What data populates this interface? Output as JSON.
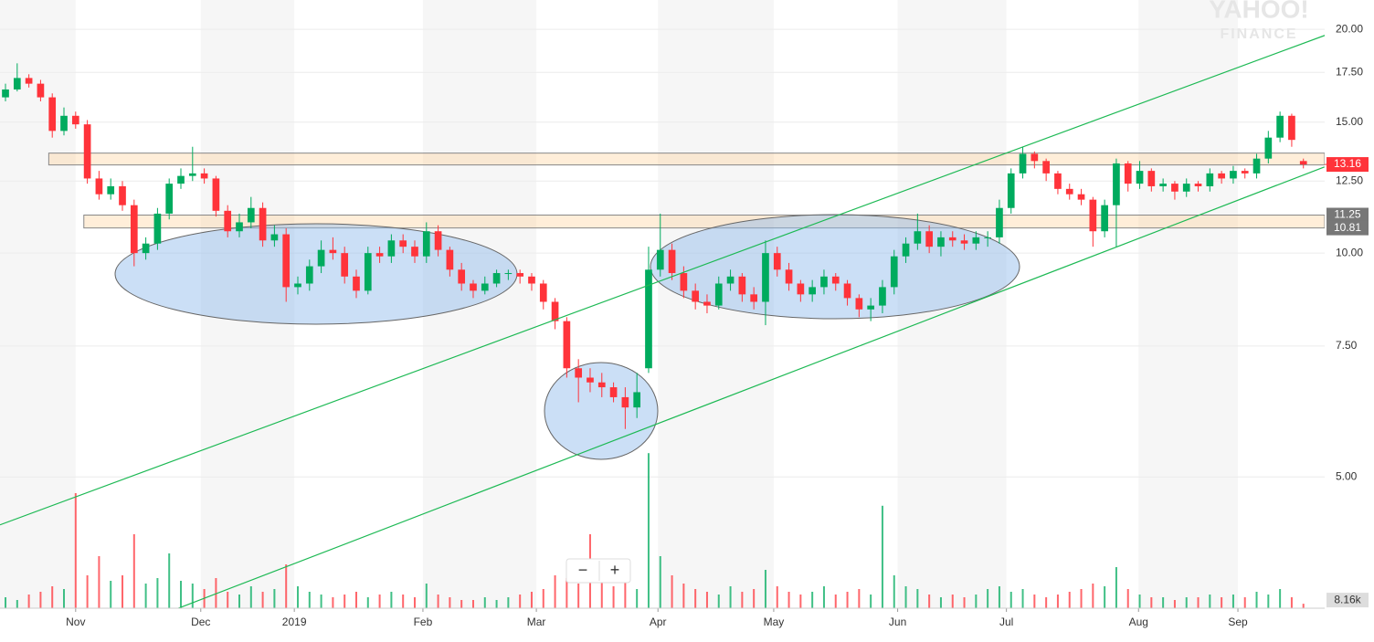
{
  "chart_data": {
    "type": "candlestick",
    "watermark": [
      "YAHOO!",
      "FINANCE"
    ],
    "zoom_controls": [
      "−",
      "+"
    ],
    "log_scale": true,
    "ylim": [
      3.2,
      21.9
    ],
    "yticks": [
      {
        "value": 5,
        "label": "5.00"
      },
      {
        "value": 7.5,
        "label": "7.50"
      },
      {
        "value": 10,
        "label": "10.00"
      },
      {
        "value": 12.5,
        "label": "12.50"
      },
      {
        "value": 15,
        "label": "15.00"
      },
      {
        "value": 17.5,
        "label": "17.50"
      },
      {
        "value": 20,
        "label": "20.00"
      }
    ],
    "xlim": [
      -0.47,
      113.6
    ],
    "xticks": [
      {
        "value": 6.0,
        "label": "Nov"
      },
      {
        "value": 16.7,
        "label": "Dec"
      },
      {
        "value": 24.7,
        "label": "2019"
      },
      {
        "value": 35.7,
        "label": "Feb"
      },
      {
        "value": 45.4,
        "label": "Mar"
      },
      {
        "value": 55.8,
        "label": "Apr"
      },
      {
        "value": 65.7,
        "label": "May"
      },
      {
        "value": 76.3,
        "label": "Jun"
      },
      {
        "value": 85.6,
        "label": "Jul"
      },
      {
        "value": 96.9,
        "label": "Aug"
      },
      {
        "value": 105.4,
        "label": "Sep"
      }
    ],
    "grid": true,
    "up_color": "#00ab5e",
    "down_color": "#ff333a",
    "open": [
      16.2,
      16.6,
      17.2,
      16.9,
      16.2,
      14.6,
      15.3,
      14.9,
      12.6,
      12.0,
      12.3,
      11.6,
      10.0,
      10.3,
      11.3,
      12.4,
      12.7,
      12.8,
      12.6,
      11.4,
      10.7,
      11.0,
      11.5,
      10.4,
      10.6,
      9.0,
      9.1,
      9.6,
      10.1,
      10.0,
      9.3,
      8.9,
      10.0,
      9.9,
      10.4,
      10.2,
      9.9,
      10.7,
      10.1,
      9.5,
      9.1,
      8.9,
      9.1,
      9.4,
      9.4,
      9.3,
      9.1,
      8.6,
      8.1,
      7.0,
      6.8,
      6.7,
      6.6,
      6.4,
      6.2,
      7.0,
      9.5,
      10.1,
      9.4,
      8.9,
      8.6,
      8.5,
      9.1,
      9.3,
      8.8,
      8.6,
      10.0,
      9.5,
      9.1,
      8.8,
      9.0,
      9.3,
      9.1,
      8.7,
      8.4,
      8.5,
      9.0,
      9.9,
      10.3,
      10.7,
      10.2,
      10.5,
      10.4,
      10.3,
      10.5,
      10.5,
      11.5,
      12.8,
      13.6,
      13.3,
      12.8,
      12.2,
      12.0,
      11.8,
      10.7,
      11.6,
      13.2,
      12.4,
      12.9,
      12.3,
      12.4,
      12.1,
      12.4,
      12.3,
      12.8,
      12.6,
      12.9,
      12.8,
      13.4,
      14.3,
      15.3,
      13.3
    ],
    "high": [
      16.9,
      18.0,
      17.4,
      17.1,
      16.4,
      15.7,
      15.5,
      15.1,
      12.9,
      12.6,
      12.5,
      11.8,
      10.5,
      11.5,
      12.6,
      13.0,
      13.9,
      13.0,
      12.7,
      11.6,
      11.3,
      11.9,
      11.7,
      10.9,
      10.8,
      9.3,
      9.8,
      10.4,
      10.5,
      10.2,
      9.5,
      10.2,
      10.2,
      10.6,
      10.6,
      10.4,
      11.0,
      10.9,
      10.2,
      9.7,
      9.2,
      9.3,
      9.5,
      9.5,
      9.5,
      9.4,
      9.2,
      8.7,
      8.2,
      7.2,
      7.0,
      6.9,
      6.7,
      6.6,
      6.9,
      10.2,
      11.3,
      10.3,
      9.6,
      9.1,
      8.8,
      9.3,
      9.5,
      9.4,
      9.0,
      10.4,
      10.2,
      9.7,
      9.2,
      9.2,
      9.5,
      9.4,
      9.2,
      8.8,
      8.7,
      9.2,
      10.1,
      10.5,
      11.3,
      10.9,
      10.7,
      10.7,
      10.6,
      10.7,
      10.7,
      11.8,
      13.0,
      13.9,
      13.7,
      13.4,
      12.9,
      12.4,
      12.2,
      11.9,
      11.8,
      13.4,
      13.3,
      13.3,
      13.0,
      12.6,
      12.5,
      12.6,
      12.5,
      13.0,
      12.9,
      13.1,
      13.0,
      13.6,
      14.6,
      15.5,
      15.4,
      13.4
    ],
    "low": [
      16.0,
      16.5,
      16.7,
      16.0,
      14.3,
      14.4,
      14.7,
      12.4,
      11.8,
      11.8,
      11.4,
      9.6,
      9.8,
      10.1,
      11.1,
      12.2,
      12.5,
      12.4,
      11.2,
      10.5,
      10.5,
      10.8,
      10.2,
      10.2,
      8.6,
      8.8,
      8.9,
      9.4,
      9.8,
      9.1,
      8.7,
      8.8,
      9.7,
      9.7,
      10.0,
      9.7,
      9.7,
      9.9,
      9.3,
      8.9,
      8.7,
      8.8,
      9.0,
      9.2,
      9.1,
      8.9,
      8.4,
      7.9,
      6.8,
      6.3,
      6.5,
      6.4,
      6.3,
      5.8,
      6.0,
      6.9,
      9.3,
      9.2,
      8.7,
      8.4,
      8.3,
      8.4,
      8.9,
      8.6,
      8.4,
      8.0,
      9.3,
      8.9,
      8.6,
      8.6,
      8.8,
      8.9,
      8.5,
      8.2,
      8.1,
      8.3,
      8.8,
      9.7,
      10.1,
      10.0,
      9.9,
      10.2,
      10.1,
      10.1,
      10.2,
      10.3,
      11.3,
      12.6,
      13.0,
      12.5,
      12.0,
      11.8,
      11.6,
      10.2,
      10.5,
      10.2,
      12.1,
      12.2,
      12.1,
      12.1,
      11.8,
      11.9,
      12.1,
      12.1,
      12.4,
      12.4,
      12.6,
      12.6,
      13.2,
      14.1,
      13.9,
      13.0
    ],
    "close": [
      16.6,
      17.2,
      16.9,
      16.2,
      14.6,
      15.3,
      14.9,
      12.6,
      12.0,
      12.3,
      11.6,
      10.0,
      10.3,
      11.3,
      12.4,
      12.7,
      12.8,
      12.6,
      11.4,
      10.7,
      11.0,
      11.5,
      10.4,
      10.6,
      9.0,
      9.1,
      9.6,
      10.1,
      10.0,
      9.3,
      8.9,
      10.0,
      9.9,
      10.4,
      10.2,
      9.9,
      10.7,
      10.1,
      9.5,
      9.1,
      8.9,
      9.1,
      9.4,
      9.4,
      9.3,
      9.1,
      8.6,
      8.1,
      7.0,
      6.8,
      6.7,
      6.6,
      6.4,
      6.2,
      6.5,
      9.5,
      10.1,
      9.4,
      8.9,
      8.6,
      8.5,
      9.1,
      9.3,
      8.8,
      8.6,
      10.0,
      9.5,
      9.1,
      8.8,
      9.0,
      9.3,
      9.1,
      8.7,
      8.4,
      8.5,
      9.0,
      9.9,
      10.3,
      10.7,
      10.2,
      10.5,
      10.4,
      10.3,
      10.5,
      10.5,
      11.5,
      12.8,
      13.6,
      13.3,
      12.8,
      12.2,
      12.0,
      11.8,
      10.7,
      11.6,
      13.2,
      12.4,
      12.9,
      12.3,
      12.4,
      12.1,
      12.4,
      12.3,
      12.8,
      12.6,
      12.9,
      12.8,
      13.4,
      14.3,
      15.3,
      14.2,
      13.16
    ],
    "volume": [
      20,
      15,
      25,
      30,
      40,
      35,
      210,
      60,
      95,
      50,
      60,
      135,
      45,
      55,
      100,
      50,
      45,
      35,
      55,
      30,
      25,
      40,
      30,
      35,
      80,
      40,
      30,
      25,
      20,
      25,
      30,
      20,
      25,
      30,
      25,
      20,
      45,
      25,
      20,
      15,
      15,
      20,
      15,
      20,
      25,
      30,
      35,
      60,
      55,
      45,
      135,
      50,
      40,
      55,
      35,
      283,
      95,
      60,
      45,
      35,
      30,
      25,
      40,
      30,
      35,
      70,
      40,
      30,
      25,
      30,
      40,
      25,
      30,
      35,
      25,
      187,
      60,
      40,
      35,
      25,
      20,
      25,
      20,
      25,
      35,
      40,
      30,
      35,
      25,
      20,
      25,
      30,
      35,
      45,
      40,
      75,
      35,
      25,
      20,
      20,
      15,
      20,
      20,
      25,
      20,
      25,
      20,
      30,
      25,
      35,
      20,
      8.16
    ],
    "volume_ylim": [
      0,
      300
    ],
    "last_volume_label": "8.16k",
    "zones": [
      {
        "from": 13.14,
        "to": 13.63,
        "start": 4
      },
      {
        "from": 10.81,
        "to": 11.25,
        "start": 7
      }
    ],
    "trendlines": [
      {
        "x": [
          -0.47,
          113.6
        ],
        "y": [
          4.31,
          19.83
        ]
      },
      {
        "x": [
          14.375,
          112.8
        ],
        "y": [
          3.31,
          13.06
        ]
      }
    ]
  }
}
